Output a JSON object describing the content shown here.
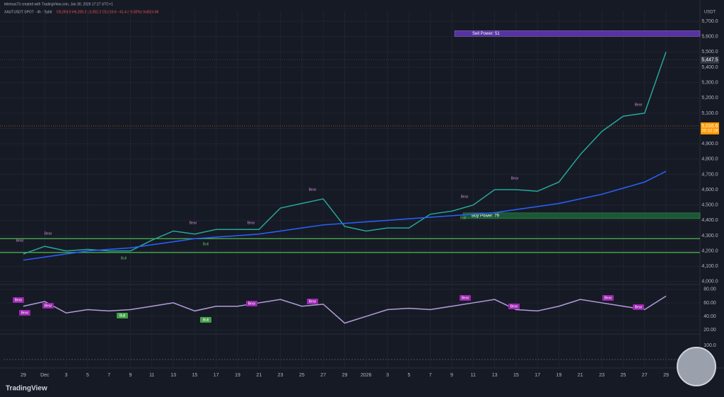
{
  "chart_data": {
    "type": "line",
    "header": "telemax73 created with TradingView.com, Jan 30, 2026 17:27 UTC+1",
    "symbol": "XAUTUSDT SPOT · 4h · Bybit",
    "ohlc": "O5,058.0 H5,209.3 L5,002.2 C5,016.6 −41.4 (−0.82%) Vol524.96",
    "currency": "USDT",
    "brand": "TradingView",
    "categories": [
      "29",
      "Dec",
      "3",
      "5",
      "7",
      "9",
      "11",
      "13",
      "15",
      "17",
      "19",
      "21",
      "23",
      "25",
      "27",
      "29",
      "2026",
      "3",
      "5",
      "7",
      "9",
      "11",
      "13",
      "15",
      "17",
      "19",
      "21",
      "23",
      "25",
      "27",
      "29"
    ],
    "series": [
      {
        "name": "Price",
        "color": "#26a69a",
        "values": [
          4180,
          4230,
          4200,
          4210,
          4200,
          4200,
          4270,
          4330,
          4310,
          4340,
          4340,
          4340,
          4480,
          4510,
          4540,
          4360,
          4330,
          4350,
          4350,
          4440,
          4460,
          4500,
          4600,
          4600,
          4590,
          4650,
          4830,
          4980,
          5080,
          5100,
          5500
        ]
      },
      {
        "name": "MA",
        "color": "#2962ff",
        "values": [
          4140,
          4160,
          4180,
          4200,
          4210,
          4220,
          4240,
          4260,
          4280,
          4290,
          4300,
          4310,
          4330,
          4350,
          4370,
          4380,
          4390,
          4400,
          4410,
          4420,
          4430,
          4440,
          4450,
          4470,
          4490,
          4510,
          4540,
          4570,
          4610,
          4650,
          4720
        ]
      }
    ],
    "ylim": [
      3990,
      5770
    ],
    "yticks": [
      {
        "value": 4000,
        "label": "4,000.0"
      },
      {
        "value": 4100,
        "label": "4,100.0"
      },
      {
        "value": 4200,
        "label": "4,200.0"
      },
      {
        "value": 4300,
        "label": "4,300.0"
      },
      {
        "value": 4400,
        "label": "4,400.0"
      },
      {
        "value": 4500,
        "label": "4,500.0"
      },
      {
        "value": 4600,
        "label": "4,600.0"
      },
      {
        "value": 4700,
        "label": "4,700.0"
      },
      {
        "value": 4800,
        "label": "4,800.0"
      },
      {
        "value": 4900,
        "label": "4,900.0"
      },
      {
        "value": 5000,
        "label": "5,000.0"
      },
      {
        "value": 5100,
        "label": "5,100.0"
      },
      {
        "value": 5200,
        "label": "5,200.0"
      },
      {
        "value": 5300,
        "label": "5,300.0"
      },
      {
        "value": 5400,
        "label": "5,400.0"
      },
      {
        "value": 5500,
        "label": "5,500.0"
      },
      {
        "value": 5600,
        "label": "5,600.0"
      },
      {
        "value": 5700,
        "label": "5,700.0"
      }
    ],
    "price_marks": [
      {
        "value": 5447.5,
        "label": "5,447.5"
      },
      {
        "value": 5016.6,
        "label": "5,016.6"
      }
    ],
    "countdown": "00:32:28",
    "zones": [
      {
        "name": "Sell Power: 51",
        "value": 5620
      },
      {
        "name": "Buy Power: 79",
        "value": 4430
      }
    ],
    "levels": [
      4280,
      4190
    ],
    "markers": [
      "Bear",
      "Bear",
      "Bull",
      "Bear",
      "Bull",
      "Bear",
      "Bear",
      "Bear",
      "Bull",
      "Bear",
      "Bear"
    ],
    "rsi": {
      "values": [
        55,
        62,
        45,
        50,
        48,
        50,
        55,
        60,
        48,
        55,
        55,
        60,
        65,
        55,
        58,
        30,
        40,
        50,
        52,
        50,
        55,
        60,
        65,
        50,
        48,
        55,
        65,
        60,
        55,
        50,
        70
      ],
      "color": "#b39ddb",
      "ylim": [
        16,
        84
      ],
      "yticks": [
        {
          "value": 20,
          "label": "20.00"
        },
        {
          "value": 40,
          "label": "40.00"
        },
        {
          "value": 60,
          "label": "60.00"
        },
        {
          "value": 80,
          "label": "80.00"
        }
      ],
      "markers": [
        "Bear",
        "Bear",
        "Bull",
        "Bull",
        "Bear",
        "Bear",
        "Bear",
        "Bear",
        "Bear",
        "Bear",
        "Bear"
      ]
    },
    "macd_tick": "100.0"
  }
}
